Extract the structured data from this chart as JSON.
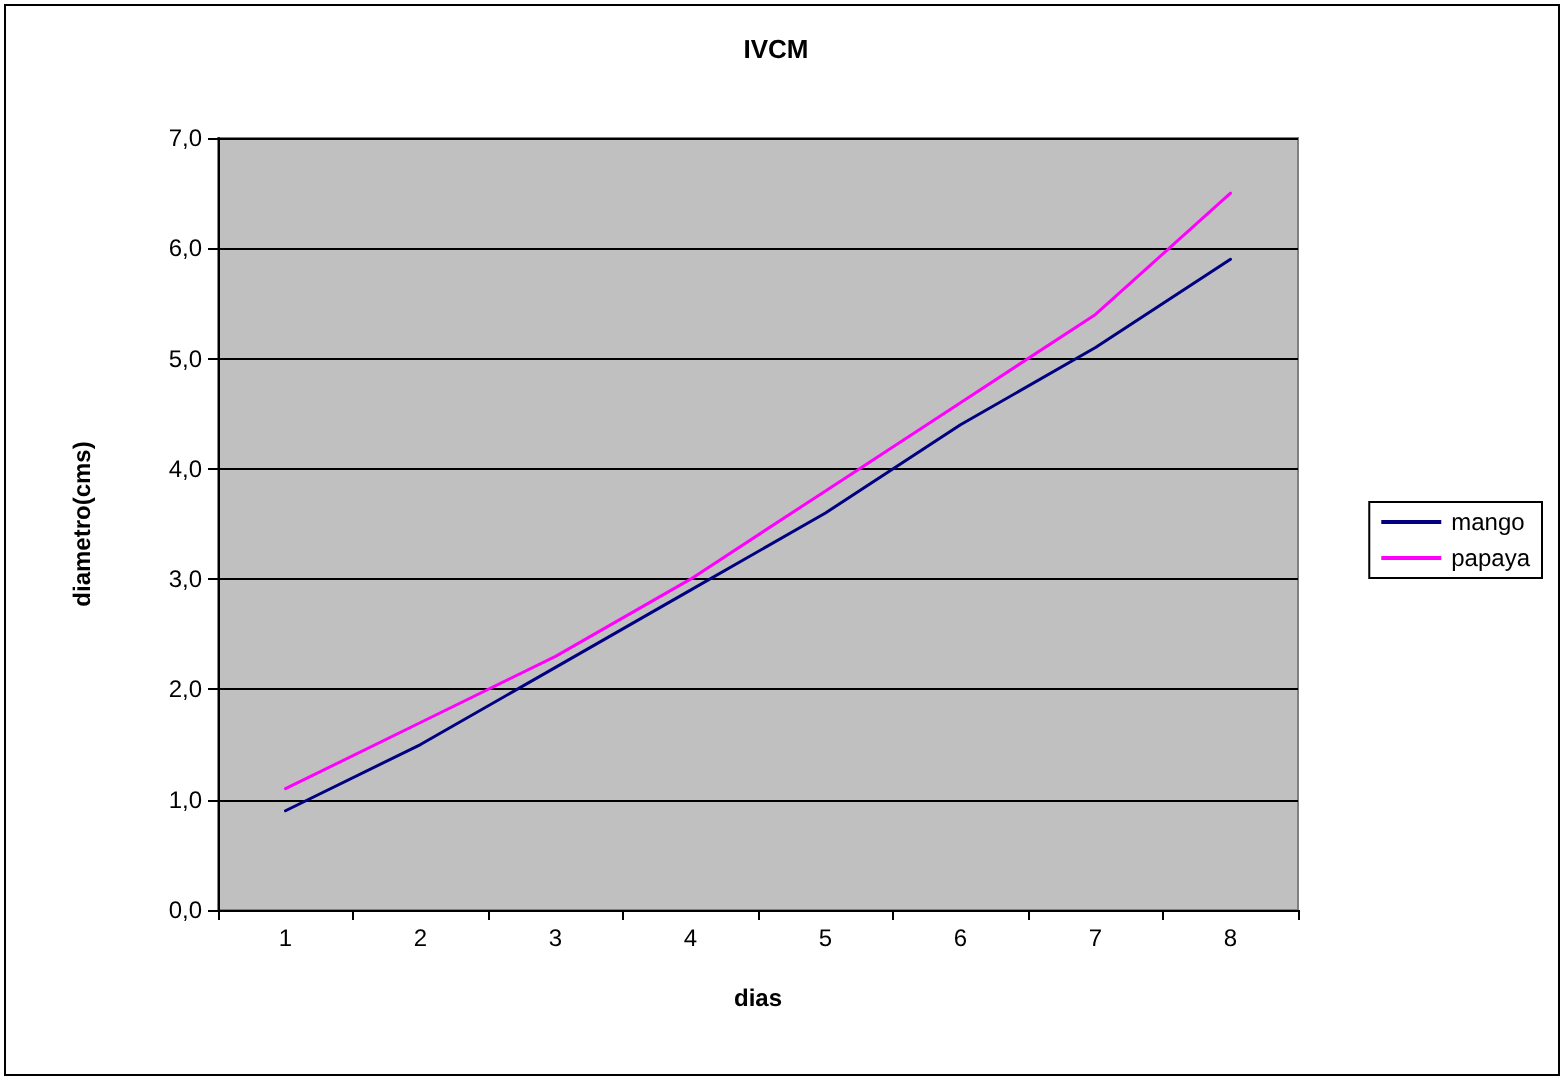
{
  "chart_data": {
    "type": "line",
    "title": "IVCM",
    "xlabel": "dias",
    "ylabel": "diametro(cms)",
    "categories": [
      "1",
      "2",
      "3",
      "4",
      "5",
      "6",
      "7",
      "8"
    ],
    "series": [
      {
        "name": "mango",
        "color": "#000080",
        "values": [
          0.9,
          1.5,
          2.2,
          2.9,
          3.6,
          4.4,
          5.1,
          5.9
        ]
      },
      {
        "name": "papaya",
        "color": "#ff00ff",
        "values": [
          1.1,
          1.7,
          2.3,
          3.0,
          3.8,
          4.6,
          5.4,
          6.5
        ]
      }
    ],
    "ylim": [
      0,
      7
    ],
    "yticks": [
      {
        "value": 0,
        "label": "0,0"
      },
      {
        "value": 1,
        "label": "1,0"
      },
      {
        "value": 2,
        "label": "2,0"
      },
      {
        "value": 3,
        "label": "3,0"
      },
      {
        "value": 4,
        "label": "4,0"
      },
      {
        "value": 5,
        "label": "5,0"
      },
      {
        "value": 6,
        "label": "6,0"
      },
      {
        "value": 7,
        "label": "7,0"
      }
    ],
    "grid": "y",
    "legend": "right",
    "marker": "none",
    "line_style": "solid"
  }
}
